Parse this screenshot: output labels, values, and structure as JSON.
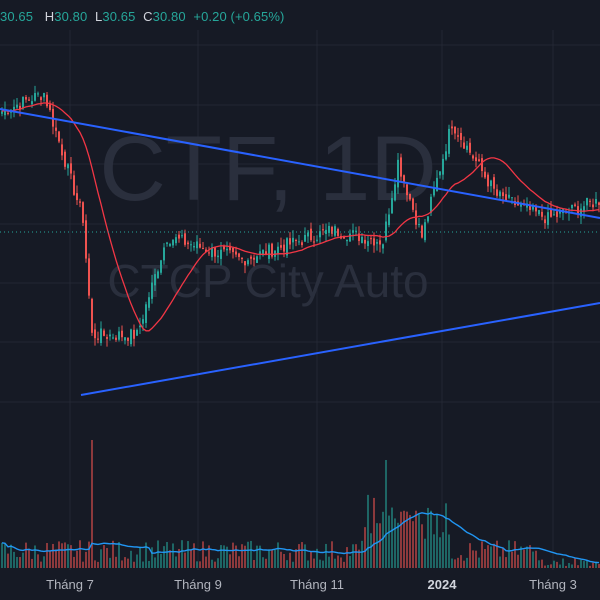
{
  "legend": {
    "o_key": "",
    "o_val": "30.65",
    "h_key": "H",
    "h_val": "30.80",
    "l_key": "L",
    "l_val": "30.65",
    "c_key": "C",
    "c_val": "30.80",
    "change": "+0.20 (+0.65%)"
  },
  "watermark": {
    "symbol": "CTF, 1D",
    "name": "CTCP City Auto"
  },
  "colors": {
    "background": "#161a25",
    "up": "#26a69a",
    "down": "#ef5350",
    "ma": "#f23645",
    "trendline": "#2962ff",
    "volume_ma": "#2196f3",
    "grid": "#232733"
  },
  "chart_data": {
    "type": "candlestick",
    "interval": "1D",
    "x_labels": [
      "Tháng 7",
      "Tháng 9",
      "Tháng 11",
      "2024",
      "Tháng 3"
    ],
    "price_axis_visible": false,
    "price_range_approx": [
      20.0,
      35.0
    ],
    "overlays": [
      "moving average (red)",
      "descending trendline (blue)",
      "ascending trendline (blue)",
      "volume moving average (blue)"
    ],
    "key_points": [
      {
        "period": "mid June 2023",
        "price": 32.2
      },
      {
        "period": "late June 2023",
        "price": 33.0
      },
      {
        "period": "early July 2023",
        "price": 27.5
      },
      {
        "period": "mid July 2023",
        "price": 22.4
      },
      {
        "period": "early August 2023",
        "price": 22.4
      },
      {
        "period": "mid August 2023",
        "price": 26.7
      },
      {
        "period": "September 2023",
        "price": 25.7
      },
      {
        "period": "October 2023",
        "price": 27.0
      },
      {
        "period": "November 2023",
        "price": 26.7
      },
      {
        "period": "early December 2023",
        "price": 26.5
      },
      {
        "period": "mid December 2023",
        "price": 30.0
      },
      {
        "period": "early January 2024",
        "price": 31.7
      },
      {
        "period": "February 2024",
        "price": 28.5
      },
      {
        "period": "March 2024",
        "price": 27.5
      },
      {
        "period": "late March 2024",
        "price": 28.3
      }
    ]
  }
}
